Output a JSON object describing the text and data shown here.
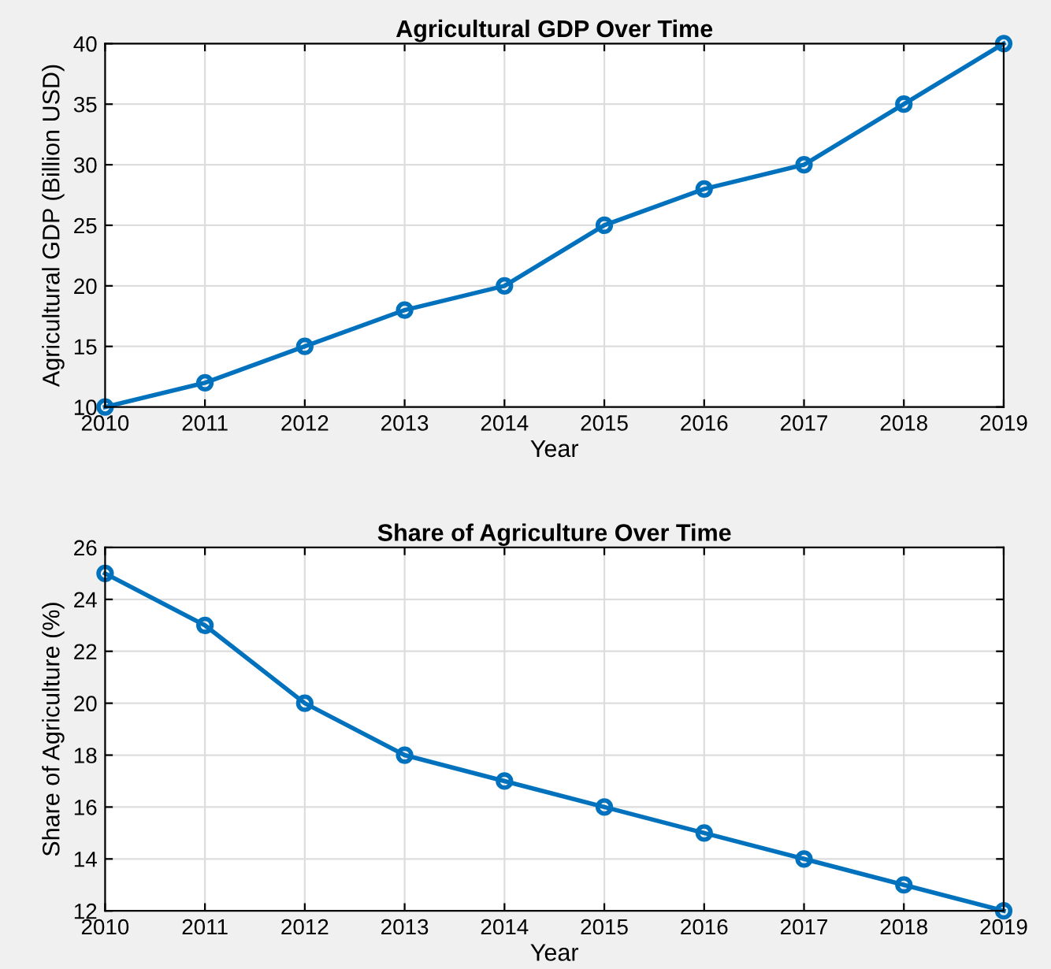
{
  "chart_data": [
    {
      "type": "line",
      "title": "Agricultural GDP Over Time",
      "xlabel": "Year",
      "ylabel": "Agricultural GDP (Billion USD)",
      "x": [
        2010,
        2011,
        2012,
        2013,
        2014,
        2015,
        2016,
        2017,
        2018,
        2019
      ],
      "series": [
        {
          "color": "#0072bd",
          "values": [
            10,
            12,
            15,
            18,
            20,
            25,
            28,
            30,
            35,
            40
          ]
        }
      ],
      "xlim": [
        2010,
        2019
      ],
      "xticks": [
        2010,
        2011,
        2012,
        2013,
        2014,
        2015,
        2016,
        2017,
        2018,
        2019
      ],
      "ylim": [
        10,
        40
      ],
      "yticks": [
        10,
        15,
        20,
        25,
        30,
        35,
        40
      ],
      "grid": true,
      "marker": "circle",
      "line_style": "solid"
    },
    {
      "type": "line",
      "title": "Share of Agriculture Over Time",
      "xlabel": "Year",
      "ylabel": "Share of Agriculture (%)",
      "x": [
        2010,
        2011,
        2012,
        2013,
        2014,
        2015,
        2016,
        2017,
        2018,
        2019
      ],
      "series": [
        {
          "color": "#0072bd",
          "values": [
            25,
            23,
            20,
            18,
            17,
            16,
            15,
            14,
            13,
            12
          ]
        }
      ],
      "xlim": [
        2010,
        2019
      ],
      "xticks": [
        2010,
        2011,
        2012,
        2013,
        2014,
        2015,
        2016,
        2017,
        2018,
        2019
      ],
      "ylim": [
        12,
        26
      ],
      "yticks": [
        12,
        14,
        16,
        18,
        20,
        22,
        24,
        26
      ],
      "grid": true,
      "marker": "circle",
      "line_style": "solid"
    }
  ]
}
